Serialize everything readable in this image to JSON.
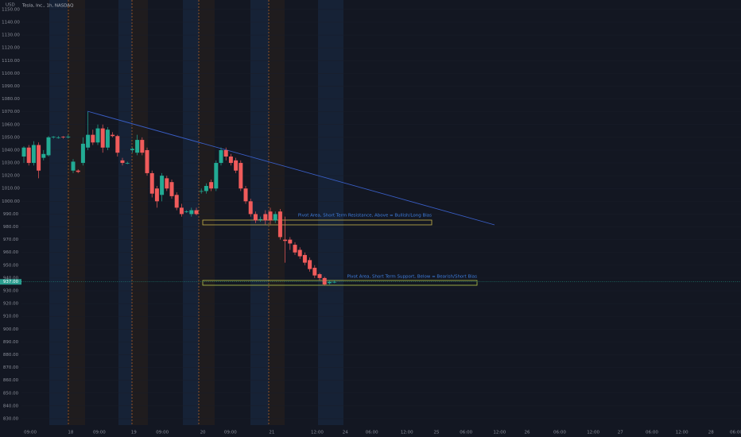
{
  "chart_data": {
    "type": "candlestick",
    "title": "Tesla, Inc., 1h, NASDAQ",
    "currency": "USD",
    "up_color": "#22ab94",
    "down_color": "#f05b5b",
    "open": [
      1035,
      1042,
      1030,
      1044,
      1034,
      1036,
      1050,
      1050,
      1050.5,
      1050,
      1024,
      1024,
      1030,
      1042,
      1052,
      1046,
      1057,
      1042,
      1052,
      1051,
      1032,
      1030,
      1040,
      1038,
      1048,
      1040,
      1022,
      1010,
      1005,
      1018,
      1015,
      1005,
      995,
      992,
      990,
      993,
      1008,
      1008,
      1015,
      1010,
      1030,
      1040,
      1035,
      1032,
      1030,
      1010,
      1000,
      990,
      986,
      990,
      992,
      985,
      992,
      970,
      970,
      966,
      962,
      958,
      954,
      948,
      943,
      940,
      936,
      937
    ],
    "high": [
      1043,
      1044,
      1047,
      1046,
      1040,
      1051,
      1051,
      1051,
      1051,
      1052,
      1033,
      1025,
      1050,
      1070,
      1056,
      1060,
      1060,
      1058,
      1054,
      1052,
      1034,
      1031,
      1042,
      1052,
      1050,
      1042,
      1024,
      1012,
      1022,
      1020,
      1017,
      1007,
      998,
      993,
      995,
      995,
      1010,
      1014,
      1017,
      1032,
      1042,
      1042,
      1037,
      1034,
      1032,
      1012,
      1002,
      992,
      988,
      993,
      995,
      992,
      994,
      988,
      972,
      968,
      964,
      960,
      956,
      950,
      944,
      941,
      938,
      938
    ],
    "low": [
      1030,
      1028,
      1028,
      1018,
      1032,
      1035,
      1049,
      1049,
      1049,
      1049,
      1022,
      1022,
      1028,
      1040,
      1044,
      1044,
      1038,
      1040,
      1050,
      1035,
      1028,
      1029,
      1038,
      1036,
      1036,
      1020,
      1003,
      995,
      1000,
      1008,
      1002,
      993,
      988,
      991,
      988,
      989,
      1006,
      1006,
      1008,
      1008,
      1028,
      1032,
      1028,
      1022,
      1008,
      998,
      988,
      983,
      984,
      982,
      982,
      983,
      970,
      952,
      962,
      958,
      955,
      950,
      945,
      940,
      938,
      934,
      935,
      936
    ],
    "close": [
      1042,
      1030,
      1044,
      1024,
      1037,
      1050,
      1050.5,
      1050,
      1050,
      1050.5,
      1031,
      1023,
      1045,
      1052,
      1046,
      1057,
      1042,
      1056,
      1051,
      1038,
      1030,
      1030,
      1041,
      1048,
      1038,
      1022,
      1006,
      1000,
      1020,
      1010,
      1004,
      995,
      990,
      992,
      993,
      990,
      1008,
      1012,
      1010,
      1030,
      1040,
      1035,
      1030,
      1024,
      1010,
      1000,
      990,
      985,
      986,
      985,
      985,
      990,
      972,
      969,
      967,
      960,
      957,
      952,
      947,
      942,
      940,
      935,
      937,
      937
    ],
    "ylim": [
      825,
      1157.4
    ],
    "yticks": [
      {
        "value": 1150,
        "label": "1150.00"
      },
      {
        "value": 1140,
        "label": "1140.00"
      },
      {
        "value": 1130,
        "label": "1130.00"
      },
      {
        "value": 1120,
        "label": "1120.00"
      },
      {
        "value": 1110,
        "label": "1110.00"
      },
      {
        "value": 1100,
        "label": "1100.00"
      },
      {
        "value": 1090,
        "label": "1090.00"
      },
      {
        "value": 1080,
        "label": "1080.00"
      },
      {
        "value": 1070,
        "label": "1070.00"
      },
      {
        "value": 1060,
        "label": "1060.00"
      },
      {
        "value": 1050,
        "label": "1050.00"
      },
      {
        "value": 1040,
        "label": "1040.00"
      },
      {
        "value": 1030,
        "label": "1030.00"
      },
      {
        "value": 1020,
        "label": "1020.00"
      },
      {
        "value": 1010,
        "label": "1010.00"
      },
      {
        "value": 1000,
        "label": "1000.00"
      },
      {
        "value": 990,
        "label": "990.00"
      },
      {
        "value": 980,
        "label": "980.00"
      },
      {
        "value": 970,
        "label": "970.00"
      },
      {
        "value": 960,
        "label": "960.00"
      },
      {
        "value": 950,
        "label": "950.00"
      },
      {
        "value": 940,
        "label": "940.00"
      },
      {
        "value": 930,
        "label": "930.00"
      },
      {
        "value": 920,
        "label": "920.00"
      },
      {
        "value": 910,
        "label": "910.00"
      },
      {
        "value": 900,
        "label": "900.00"
      },
      {
        "value": 890,
        "label": "890.00"
      },
      {
        "value": 880,
        "label": "880.00"
      },
      {
        "value": 870,
        "label": "870.00"
      },
      {
        "value": 860,
        "label": "860.00"
      },
      {
        "value": 850,
        "label": "850.00"
      },
      {
        "value": 840,
        "label": "840.00"
      },
      {
        "value": 830,
        "label": "830.00"
      }
    ],
    "last_price": {
      "value": 937,
      "label": "937.00"
    },
    "xlim": [
      -4.84,
      145.48
    ],
    "xticks": [
      {
        "value": 1.3,
        "label": "09:00"
      },
      {
        "value": 9.5,
        "label": "18"
      },
      {
        "value": 15.3,
        "label": "09:00"
      },
      {
        "value": 22.3,
        "label": "19"
      },
      {
        "value": 28.1,
        "label": "09:00"
      },
      {
        "value": 36.3,
        "label": "20"
      },
      {
        "value": 41.9,
        "label": "09:00"
      },
      {
        "value": 50.3,
        "label": "21"
      },
      {
        "value": 59.5,
        "label": "12:00"
      },
      {
        "value": 65.2,
        "label": "24"
      },
      {
        "value": 70.6,
        "label": "06:00"
      },
      {
        "value": 77.7,
        "label": "12:00"
      },
      {
        "value": 83.7,
        "label": "25"
      },
      {
        "value": 89.7,
        "label": "06:00"
      },
      {
        "value": 96.5,
        "label": "12:00"
      },
      {
        "value": 102.1,
        "label": "26"
      },
      {
        "value": 108.7,
        "label": "06:00"
      },
      {
        "value": 115.5,
        "label": "12:00"
      },
      {
        "value": 121.0,
        "label": "27"
      },
      {
        "value": 127.4,
        "label": "06:00"
      },
      {
        "value": 133.5,
        "label": "12:00"
      },
      {
        "value": 139.4,
        "label": "28"
      },
      {
        "value": 144.5,
        "label": "06:00"
      }
    ],
    "annotations": [
      "Pivot Area, Short Term Resistance, Above = Bullish/Long Bias",
      "Pivot Area, Short Term Support, Below = Bearish/Short Bias"
    ]
  }
}
